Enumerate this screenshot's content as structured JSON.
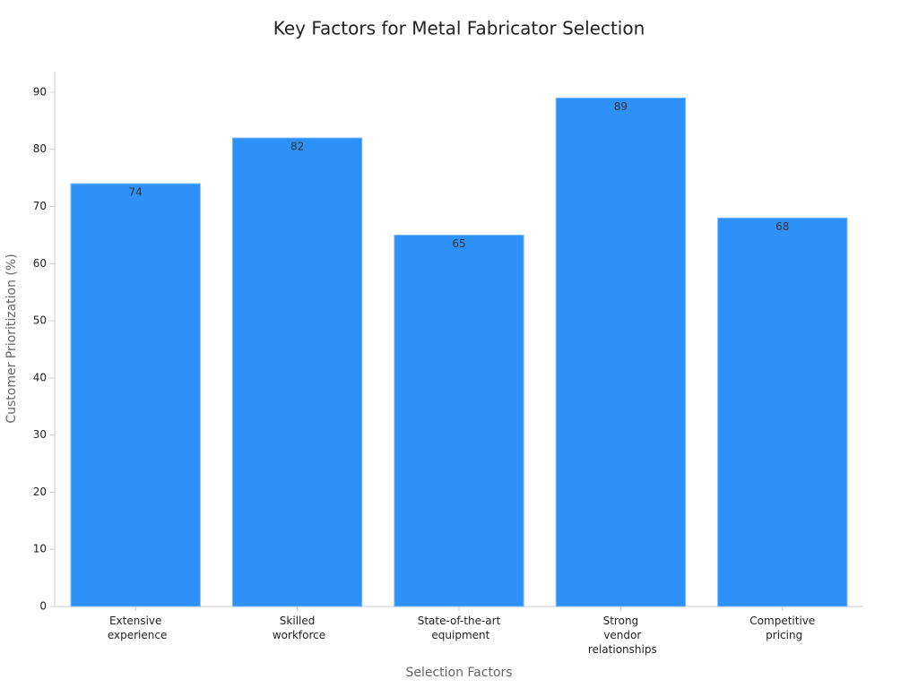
{
  "chart_data": {
    "type": "bar",
    "title": "Key Factors for Metal Fabricator Selection",
    "x_label": "Selection Factors",
    "y_label": "Customer Prioritization (%)",
    "categories": [
      "Extensive experience",
      "Skilled workforce",
      "State-of-the-art equipment",
      "Strong vendor relationships",
      "Competitive pricing"
    ],
    "values": [
      74,
      82,
      65,
      89,
      68
    ],
    "color": "#2e91f7",
    "ylim": [
      0,
      93.6
    ],
    "yticks": [
      0,
      10,
      20,
      30,
      40,
      50,
      60,
      70,
      80,
      90
    ],
    "grid": false
  }
}
